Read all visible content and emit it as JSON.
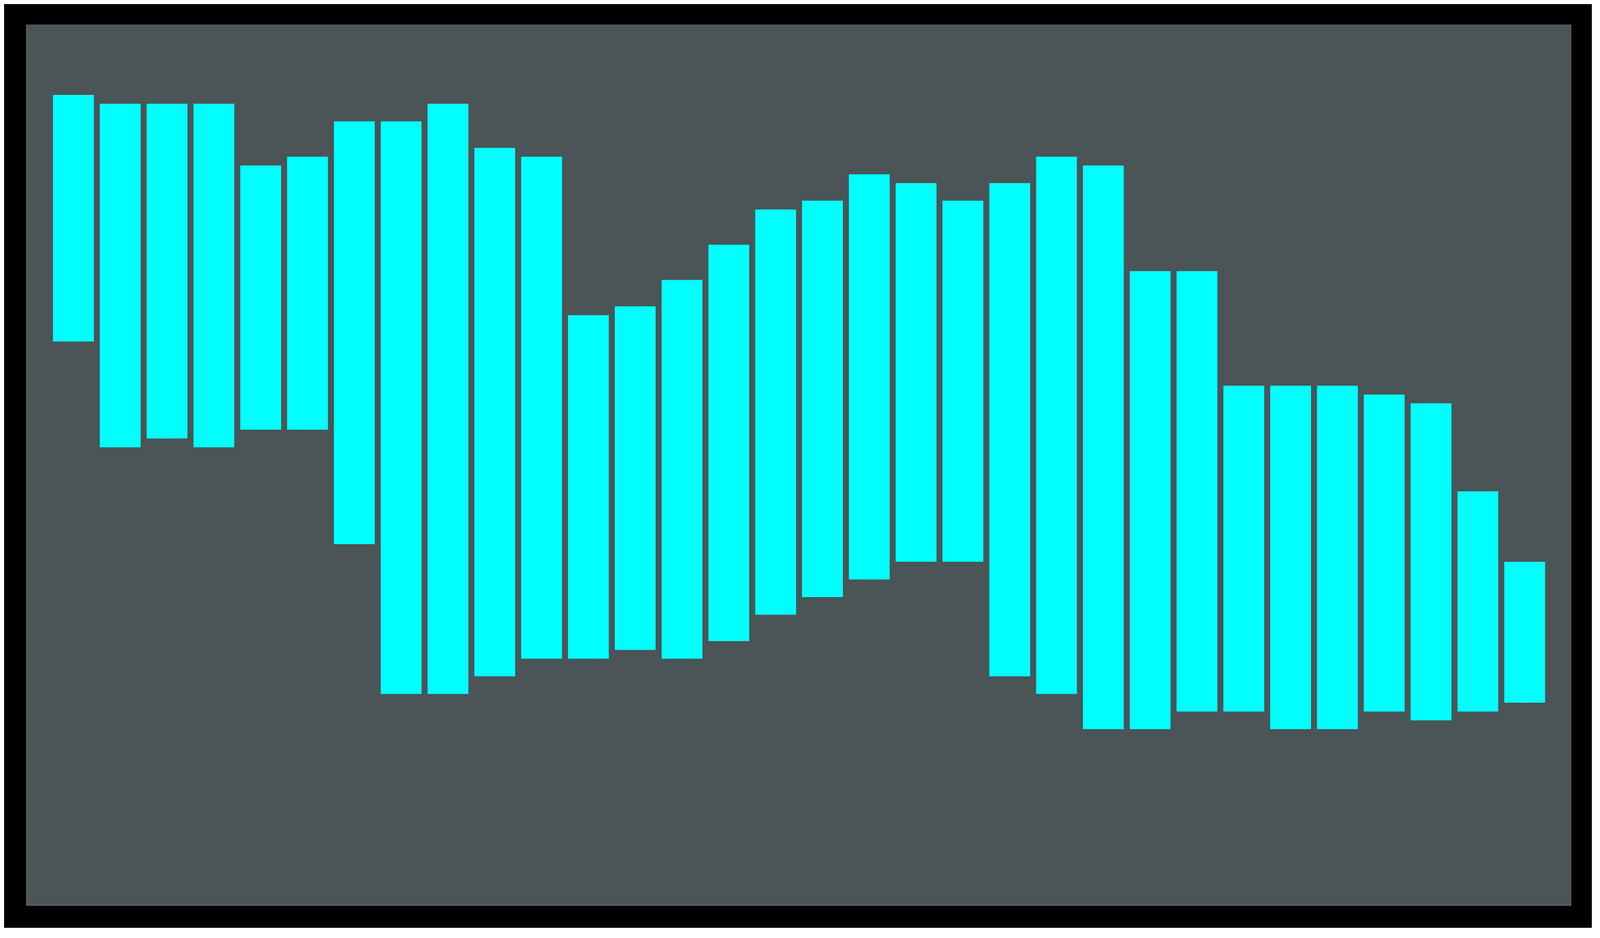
{
  "chart_data": {
    "type": "range_bar",
    "x": [
      1,
      2,
      3,
      4,
      5,
      6,
      7,
      8,
      9,
      10,
      11,
      12,
      13,
      14,
      15,
      16,
      17,
      18,
      19,
      20,
      21,
      22,
      23,
      24,
      25,
      26,
      27,
      28,
      29,
      30,
      31,
      32
    ],
    "values": [
      [
        64,
        92
      ],
      [
        52,
        91
      ],
      [
        53,
        91
      ],
      [
        52,
        91
      ],
      [
        54,
        84
      ],
      [
        54,
        85
      ],
      [
        41,
        89
      ],
      [
        24,
        89
      ],
      [
        24,
        91
      ],
      [
        26,
        86
      ],
      [
        28,
        85
      ],
      [
        28,
        67
      ],
      [
        29,
        68
      ],
      [
        28,
        71
      ],
      [
        30,
        75
      ],
      [
        33,
        79
      ],
      [
        35,
        80
      ],
      [
        37,
        83
      ],
      [
        39,
        82
      ],
      [
        39,
        80
      ],
      [
        26,
        82
      ],
      [
        24,
        85
      ],
      [
        20,
        84
      ],
      [
        20,
        72
      ],
      [
        22,
        72
      ],
      [
        22,
        59
      ],
      [
        20,
        59
      ],
      [
        20,
        59
      ],
      [
        22,
        58
      ],
      [
        21,
        57
      ],
      [
        22,
        47
      ],
      [
        23,
        39
      ]
    ],
    "color": "#00ffff",
    "xlim": [
      0,
      33
    ],
    "ylim": [
      0,
      100
    ],
    "tick_labels": false
  }
}
